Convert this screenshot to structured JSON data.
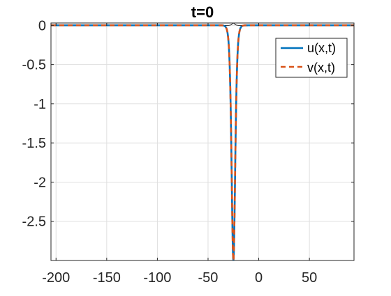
{
  "chart_data": {
    "type": "line",
    "title": "t=0",
    "xlabel": "",
    "ylabel": "",
    "xlim": [
      -205,
      94
    ],
    "ylim": [
      -3.0,
      0.03
    ],
    "xticks": [
      -200,
      -150,
      -100,
      -50,
      0,
      50
    ],
    "xtick_labels": [
      "-200",
      "-150",
      "-100",
      "-50",
      "0",
      "50"
    ],
    "yticks": [
      0,
      -0.5,
      -1,
      -1.5,
      -2,
      -2.5
    ],
    "ytick_labels": [
      "0",
      "-0.5",
      "-1",
      "-1.5",
      "-2",
      "-2.5"
    ],
    "grid": true,
    "legend_position": "top-right",
    "soliton": {
      "center": -25,
      "amplitude": -3.0,
      "width": 2.4
    },
    "series": [
      {
        "name": "u(x,t)",
        "color": "#0072BD",
        "style": "solid",
        "x": [
          -205,
          -100,
          -50,
          -40,
          -35,
          -32,
          -30,
          -29,
          -28,
          -27.5,
          -27,
          -26.5,
          -26,
          -25.5,
          -25,
          -24.5,
          -24,
          -23.5,
          -23,
          -22.5,
          -22,
          -21,
          -20,
          -18,
          -15,
          -10,
          0,
          50,
          94
        ],
        "y": [
          0,
          0,
          0,
          -0.001,
          -0.005,
          -0.016,
          -0.053,
          -0.095,
          -0.236,
          -0.365,
          -0.557,
          -0.925,
          -1.6,
          -2.33,
          -3.0,
          -2.33,
          -1.6,
          -0.925,
          -0.557,
          -0.365,
          -0.236,
          -0.095,
          -0.053,
          -0.016,
          -0.005,
          -0.001,
          0,
          0,
          0
        ]
      },
      {
        "name": "v(x,t)",
        "color": "#D95319",
        "style": "dashed",
        "x": [
          -205,
          -100,
          -50,
          -40,
          -35,
          -32,
          -30,
          -29,
          -28,
          -27.5,
          -27,
          -26.5,
          -26,
          -25.5,
          -25,
          -24.5,
          -24,
          -23.5,
          -23,
          -22.5,
          -22,
          -21,
          -20,
          -18,
          -15,
          -10,
          0,
          50,
          94
        ],
        "y": [
          0,
          0,
          0,
          -0.001,
          -0.005,
          -0.016,
          -0.053,
          -0.095,
          -0.236,
          -0.365,
          -0.557,
          -0.925,
          -1.6,
          -2.33,
          -3.0,
          -2.33,
          -1.6,
          -0.925,
          -0.557,
          -0.365,
          -0.236,
          -0.095,
          -0.053,
          -0.016,
          -0.005,
          -0.001,
          0,
          0,
          0
        ]
      }
    ],
    "reference_line": {
      "name": "",
      "color": "#000000",
      "x": [
        -205,
        -40,
        -35,
        -32,
        -30,
        -28,
        -27,
        -26,
        -25.5,
        -25,
        -24.5,
        -24,
        -23,
        -22,
        -20,
        -18,
        -15,
        -10,
        94
      ],
      "y": [
        0,
        0,
        0.0,
        0.0,
        0.0,
        0.003,
        0.008,
        0.02,
        0.026,
        0.028,
        0.026,
        0.02,
        0.008,
        0.003,
        0.0,
        0.0,
        0.0,
        0,
        0
      ]
    }
  }
}
